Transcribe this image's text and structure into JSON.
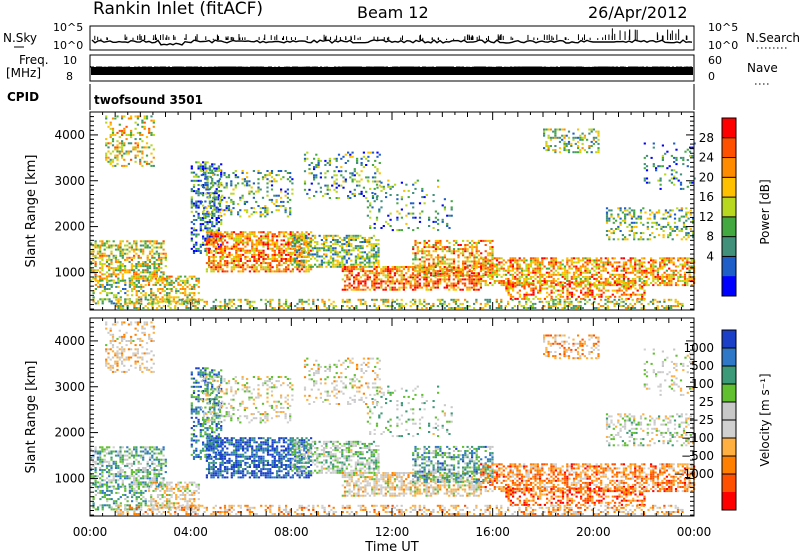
{
  "header": {
    "station": "Rankin Inlet (fitACF)",
    "beam": "Beam 12",
    "date": "26/Apr/2012"
  },
  "status_panels": {
    "nsky_label": "N.Sky",
    "nsky_ticks": [
      "10^5",
      "10^0"
    ],
    "nsearch_label": "N.Search",
    "nsearch_ticks": [
      "10^5",
      "10^0"
    ],
    "freq_label_1": "Freq.",
    "freq_label_2": "[MHz]",
    "freq_ticks": [
      "10",
      "8"
    ],
    "nave_label": "Nave",
    "nave_ticks": [
      "60",
      "0"
    ],
    "cpid_label": "CPID",
    "cpid_value": "twofsound 3501"
  },
  "chart_data": [
    {
      "type": "heatmap",
      "name": "power",
      "ylabel": "Slant Range [km]",
      "yticks": [
        1000,
        2000,
        3000,
        4000
      ],
      "ylim": [
        180,
        4500
      ],
      "xticks": [
        "00:00",
        "04:00",
        "08:00",
        "12:00",
        "16:00",
        "20:00",
        "00:00"
      ],
      "xlim_hours": [
        0,
        24
      ],
      "colorbar": {
        "label": "Power [dB]",
        "ticks": [
          "28",
          "24",
          "20",
          "16",
          "12",
          "8",
          "4"
        ],
        "colors": [
          "#ff0000",
          "#ff5000",
          "#ff8c00",
          "#ffc000",
          "#b8d820",
          "#44a840",
          "#40907a",
          "#1e5ec8",
          "#0000ff"
        ]
      }
    },
    {
      "type": "heatmap",
      "name": "velocity",
      "ylabel": "Slant Range [km]",
      "yticks": [
        1000,
        2000,
        3000,
        4000
      ],
      "ylim": [
        180,
        4500
      ],
      "xticks": [
        "00:00",
        "04:00",
        "08:00",
        "12:00",
        "16:00",
        "20:00",
        "00:00"
      ],
      "xlabel": "Time UT",
      "colorbar": {
        "label": "Velocity [m s⁻¹]",
        "ticks": [
          "1000",
          "500",
          "100",
          "25",
          "−25",
          "−100",
          "−500",
          "−1000"
        ],
        "colors": [
          "#1c3fc8",
          "#2f78c8",
          "#3c9a78",
          "#60c030",
          "#c8c8c8",
          "#d0d0d0",
          "#ffb040",
          "#ff8000",
          "#ff5000",
          "#ff0000"
        ]
      }
    }
  ]
}
